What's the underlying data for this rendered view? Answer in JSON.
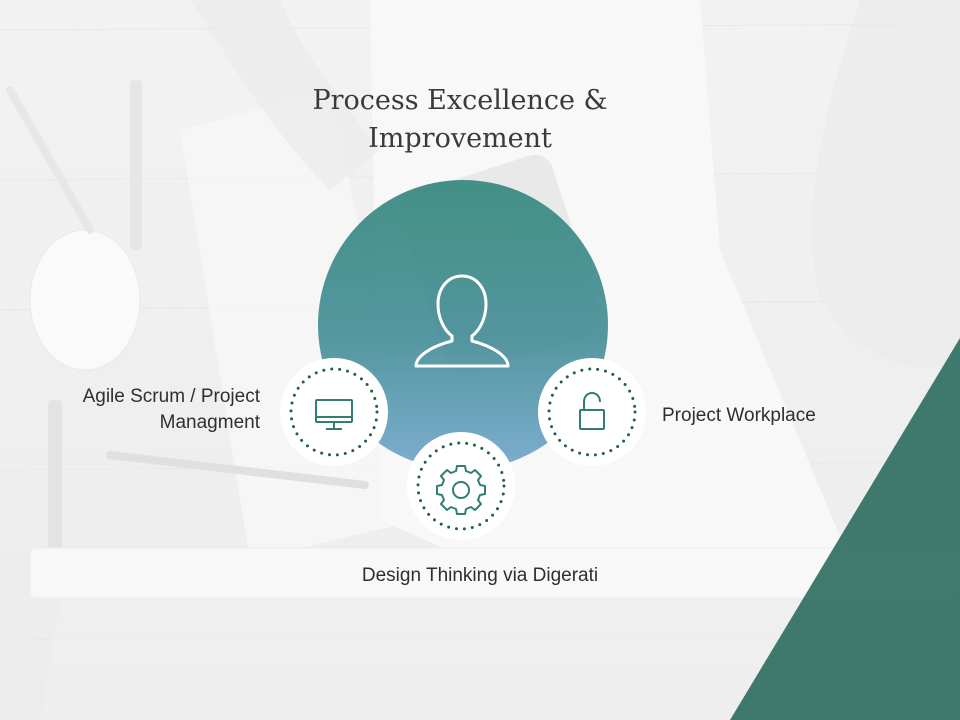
{
  "title": {
    "line1": "Process Excellence &",
    "line2": "Improvement"
  },
  "nodes": {
    "left": {
      "label_line1": "Agile Scrum / Project",
      "label_line2": "Managment",
      "icon": "monitor-icon"
    },
    "right": {
      "label": "Project Workplace",
      "icon": "unlocked-padlock-icon"
    },
    "bottom": {
      "label": "Design Thinking via Digerati",
      "icon": "gear-icon"
    },
    "center": {
      "icon": "user-icon"
    }
  },
  "colors": {
    "accent": "#2f7f72",
    "center_top": "#3a8b80",
    "center_bottom": "#4f8fb8",
    "node_bg": "#ffffff",
    "dots": "#1f5f4a",
    "triangle": "#2f6f62"
  }
}
